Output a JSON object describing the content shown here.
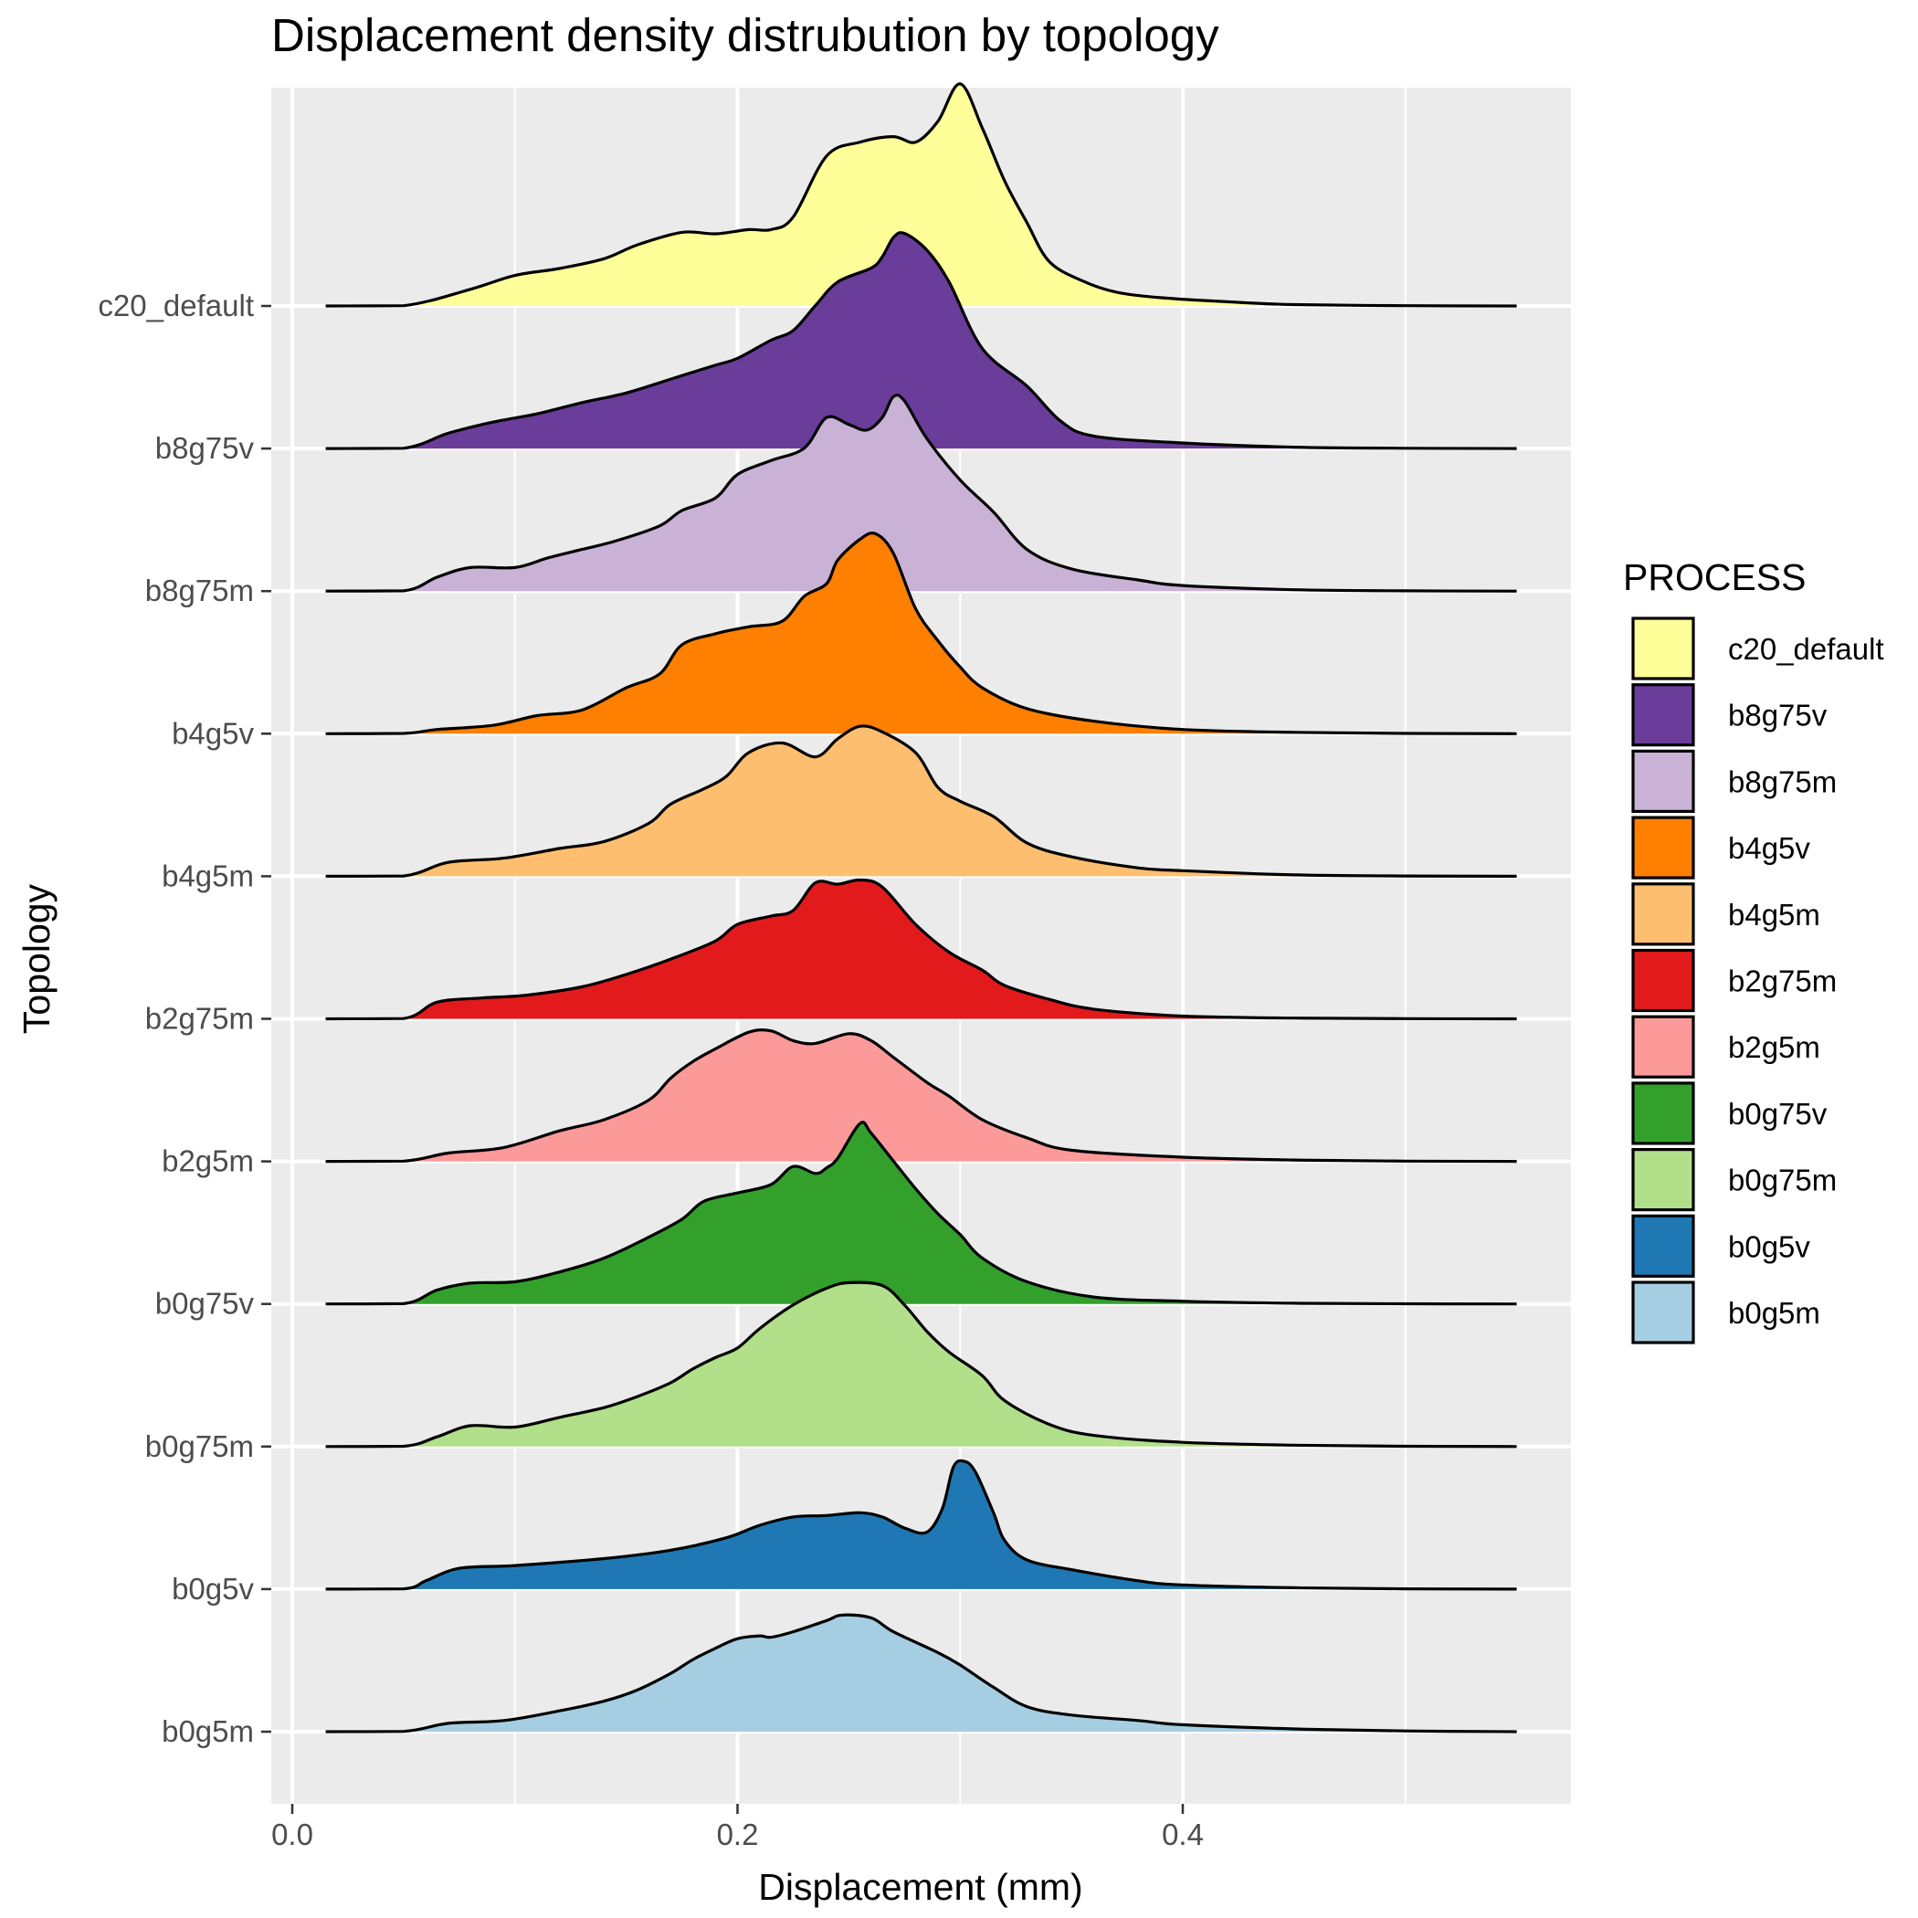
{
  "chart_data": {
    "type": "ridgeline",
    "title": "Displacement density distrubution by topology",
    "xlabel": "Displacement (mm)",
    "ylabel": "Topology",
    "xlim": [
      -0.02,
      0.575
    ],
    "x_ticks": [
      0.0,
      0.2,
      0.4
    ],
    "x_tick_labels": [
      "0.0",
      "0.2",
      "0.4"
    ],
    "grid": true,
    "legend": {
      "title": "PROCESS",
      "position": "right"
    },
    "series": [
      {
        "name": "b0g5m",
        "color": "#A6CEE3",
        "density": [
          [
            0.015,
            0
          ],
          [
            0.05,
            0.002
          ],
          [
            0.07,
            0.06
          ],
          [
            0.095,
            0.08
          ],
          [
            0.12,
            0.15
          ],
          [
            0.14,
            0.22
          ],
          [
            0.155,
            0.3
          ],
          [
            0.17,
            0.42
          ],
          [
            0.18,
            0.52
          ],
          [
            0.19,
            0.6
          ],
          [
            0.2,
            0.67
          ],
          [
            0.21,
            0.69
          ],
          [
            0.215,
            0.68
          ],
          [
            0.225,
            0.72
          ],
          [
            0.24,
            0.8
          ],
          [
            0.247,
            0.84
          ],
          [
            0.26,
            0.82
          ],
          [
            0.27,
            0.72
          ],
          [
            0.29,
            0.57
          ],
          [
            0.3,
            0.48
          ],
          [
            0.315,
            0.32
          ],
          [
            0.33,
            0.18
          ],
          [
            0.35,
            0.12
          ],
          [
            0.38,
            0.08
          ],
          [
            0.4,
            0.05
          ],
          [
            0.45,
            0.02
          ],
          [
            0.5,
            0.005
          ],
          [
            0.55,
            0
          ]
        ]
      },
      {
        "name": "b0g5v",
        "color": "#1F78B4",
        "density": [
          [
            0.015,
            0
          ],
          [
            0.05,
            0.002
          ],
          [
            0.06,
            0.06
          ],
          [
            0.075,
            0.15
          ],
          [
            0.1,
            0.17
          ],
          [
            0.14,
            0.22
          ],
          [
            0.17,
            0.28
          ],
          [
            0.195,
            0.37
          ],
          [
            0.21,
            0.46
          ],
          [
            0.225,
            0.52
          ],
          [
            0.24,
            0.53
          ],
          [
            0.255,
            0.55
          ],
          [
            0.265,
            0.52
          ],
          [
            0.275,
            0.44
          ],
          [
            0.285,
            0.41
          ],
          [
            0.292,
            0.58
          ],
          [
            0.297,
            0.88
          ],
          [
            0.302,
            0.92
          ],
          [
            0.307,
            0.84
          ],
          [
            0.315,
            0.55
          ],
          [
            0.32,
            0.35
          ],
          [
            0.33,
            0.21
          ],
          [
            0.35,
            0.14
          ],
          [
            0.38,
            0.06
          ],
          [
            0.4,
            0.03
          ],
          [
            0.45,
            0.01
          ],
          [
            0.5,
            0.002
          ],
          [
            0.55,
            0
          ]
        ]
      },
      {
        "name": "b0g75m",
        "color": "#B2DF8A",
        "density": [
          [
            0.015,
            0
          ],
          [
            0.05,
            0.002
          ],
          [
            0.065,
            0.07
          ],
          [
            0.08,
            0.15
          ],
          [
            0.1,
            0.14
          ],
          [
            0.12,
            0.21
          ],
          [
            0.14,
            0.28
          ],
          [
            0.155,
            0.36
          ],
          [
            0.17,
            0.46
          ],
          [
            0.18,
            0.56
          ],
          [
            0.19,
            0.64
          ],
          [
            0.2,
            0.71
          ],
          [
            0.21,
            0.85
          ],
          [
            0.225,
            1.02
          ],
          [
            0.24,
            1.14
          ],
          [
            0.25,
            1.18
          ],
          [
            0.265,
            1.16
          ],
          [
            0.275,
            1.02
          ],
          [
            0.285,
            0.83
          ],
          [
            0.295,
            0.68
          ],
          [
            0.31,
            0.51
          ],
          [
            0.32,
            0.33
          ],
          [
            0.34,
            0.16
          ],
          [
            0.36,
            0.08
          ],
          [
            0.4,
            0.03
          ],
          [
            0.45,
            0.01
          ],
          [
            0.5,
            0.002
          ],
          [
            0.55,
            0
          ]
        ]
      },
      {
        "name": "b0g75v",
        "color": "#33A02C",
        "density": [
          [
            0.015,
            0
          ],
          [
            0.05,
            0.002
          ],
          [
            0.065,
            0.1
          ],
          [
            0.08,
            0.15
          ],
          [
            0.1,
            0.16
          ],
          [
            0.12,
            0.23
          ],
          [
            0.14,
            0.33
          ],
          [
            0.16,
            0.48
          ],
          [
            0.175,
            0.61
          ],
          [
            0.185,
            0.74
          ],
          [
            0.2,
            0.8
          ],
          [
            0.215,
            0.86
          ],
          [
            0.225,
            0.99
          ],
          [
            0.235,
            0.94
          ],
          [
            0.24,
            0.98
          ],
          [
            0.245,
            1.05
          ],
          [
            0.255,
            1.3
          ],
          [
            0.26,
            1.23
          ],
          [
            0.27,
            1.03
          ],
          [
            0.28,
            0.83
          ],
          [
            0.29,
            0.65
          ],
          [
            0.3,
            0.5
          ],
          [
            0.31,
            0.33
          ],
          [
            0.33,
            0.16
          ],
          [
            0.36,
            0.05
          ],
          [
            0.4,
            0.02
          ],
          [
            0.45,
            0.005
          ],
          [
            0.5,
            0.001
          ],
          [
            0.55,
            0
          ]
        ]
      },
      {
        "name": "b2g5m",
        "color": "#FB9A99",
        "density": [
          [
            0.015,
            0
          ],
          [
            0.05,
            0.002
          ],
          [
            0.07,
            0.06
          ],
          [
            0.095,
            0.1
          ],
          [
            0.12,
            0.22
          ],
          [
            0.14,
            0.3
          ],
          [
            0.16,
            0.44
          ],
          [
            0.17,
            0.6
          ],
          [
            0.18,
            0.72
          ],
          [
            0.19,
            0.81
          ],
          [
            0.205,
            0.93
          ],
          [
            0.215,
            0.94
          ],
          [
            0.225,
            0.87
          ],
          [
            0.235,
            0.85
          ],
          [
            0.25,
            0.92
          ],
          [
            0.26,
            0.87
          ],
          [
            0.27,
            0.75
          ],
          [
            0.285,
            0.57
          ],
          [
            0.295,
            0.47
          ],
          [
            0.31,
            0.3
          ],
          [
            0.33,
            0.17
          ],
          [
            0.35,
            0.08
          ],
          [
            0.4,
            0.03
          ],
          [
            0.45,
            0.01
          ],
          [
            0.5,
            0.002
          ],
          [
            0.55,
            0
          ]
        ]
      },
      {
        "name": "b2g75m",
        "color": "#E31A1C",
        "density": [
          [
            0.015,
            0
          ],
          [
            0.05,
            0.002
          ],
          [
            0.065,
            0.12
          ],
          [
            0.085,
            0.15
          ],
          [
            0.105,
            0.17
          ],
          [
            0.13,
            0.23
          ],
          [
            0.15,
            0.32
          ],
          [
            0.17,
            0.43
          ],
          [
            0.19,
            0.56
          ],
          [
            0.2,
            0.68
          ],
          [
            0.215,
            0.74
          ],
          [
            0.225,
            0.78
          ],
          [
            0.235,
            0.98
          ],
          [
            0.245,
            0.97
          ],
          [
            0.255,
            1.0
          ],
          [
            0.265,
            0.95
          ],
          [
            0.28,
            0.68
          ],
          [
            0.295,
            0.48
          ],
          [
            0.31,
            0.35
          ],
          [
            0.32,
            0.24
          ],
          [
            0.34,
            0.14
          ],
          [
            0.36,
            0.07
          ],
          [
            0.4,
            0.02
          ],
          [
            0.45,
            0.005
          ],
          [
            0.5,
            0.001
          ],
          [
            0.55,
            0
          ]
        ]
      },
      {
        "name": "b4g5m",
        "color": "#FDBF6F",
        "density": [
          [
            0.015,
            0
          ],
          [
            0.05,
            0.002
          ],
          [
            0.07,
            0.1
          ],
          [
            0.095,
            0.13
          ],
          [
            0.12,
            0.2
          ],
          [
            0.14,
            0.25
          ],
          [
            0.16,
            0.38
          ],
          [
            0.17,
            0.52
          ],
          [
            0.185,
            0.63
          ],
          [
            0.195,
            0.72
          ],
          [
            0.205,
            0.89
          ],
          [
            0.22,
            0.96
          ],
          [
            0.235,
            0.86
          ],
          [
            0.245,
            0.99
          ],
          [
            0.255,
            1.08
          ],
          [
            0.265,
            1.04
          ],
          [
            0.28,
            0.89
          ],
          [
            0.29,
            0.64
          ],
          [
            0.3,
            0.54
          ],
          [
            0.315,
            0.43
          ],
          [
            0.33,
            0.24
          ],
          [
            0.35,
            0.14
          ],
          [
            0.38,
            0.06
          ],
          [
            0.4,
            0.04
          ],
          [
            0.45,
            0.01
          ],
          [
            0.5,
            0.002
          ],
          [
            0.55,
            0
          ]
        ]
      },
      {
        "name": "b4g5v",
        "color": "#FF7F00",
        "density": [
          [
            0.015,
            0
          ],
          [
            0.05,
            0.002
          ],
          [
            0.065,
            0.03
          ],
          [
            0.09,
            0.06
          ],
          [
            0.11,
            0.13
          ],
          [
            0.13,
            0.17
          ],
          [
            0.15,
            0.33
          ],
          [
            0.165,
            0.43
          ],
          [
            0.175,
            0.64
          ],
          [
            0.19,
            0.72
          ],
          [
            0.205,
            0.77
          ],
          [
            0.22,
            0.81
          ],
          [
            0.23,
            0.99
          ],
          [
            0.24,
            1.08
          ],
          [
            0.245,
            1.25
          ],
          [
            0.255,
            1.4
          ],
          [
            0.262,
            1.44
          ],
          [
            0.27,
            1.3
          ],
          [
            0.28,
            0.9
          ],
          [
            0.29,
            0.67
          ],
          [
            0.3,
            0.48
          ],
          [
            0.31,
            0.33
          ],
          [
            0.33,
            0.18
          ],
          [
            0.36,
            0.09
          ],
          [
            0.4,
            0.03
          ],
          [
            0.45,
            0.01
          ],
          [
            0.5,
            0.002
          ],
          [
            0.55,
            0
          ]
        ]
      },
      {
        "name": "b8g75m",
        "color": "#CAB2D6",
        "density": [
          [
            0.015,
            0
          ],
          [
            0.05,
            0.002
          ],
          [
            0.065,
            0.1
          ],
          [
            0.08,
            0.17
          ],
          [
            0.1,
            0.17
          ],
          [
            0.115,
            0.24
          ],
          [
            0.13,
            0.3
          ],
          [
            0.145,
            0.36
          ],
          [
            0.165,
            0.47
          ],
          [
            0.175,
            0.58
          ],
          [
            0.19,
            0.67
          ],
          [
            0.2,
            0.84
          ],
          [
            0.215,
            0.94
          ],
          [
            0.23,
            1.03
          ],
          [
            0.24,
            1.25
          ],
          [
            0.25,
            1.2
          ],
          [
            0.258,
            1.16
          ],
          [
            0.265,
            1.25
          ],
          [
            0.27,
            1.4
          ],
          [
            0.275,
            1.37
          ],
          [
            0.285,
            1.1
          ],
          [
            0.3,
            0.8
          ],
          [
            0.315,
            0.57
          ],
          [
            0.33,
            0.3
          ],
          [
            0.35,
            0.16
          ],
          [
            0.38,
            0.08
          ],
          [
            0.4,
            0.04
          ],
          [
            0.45,
            0.01
          ],
          [
            0.5,
            0.002
          ],
          [
            0.55,
            0
          ]
        ]
      },
      {
        "name": "b8g75v",
        "color": "#6A3D9A",
        "density": [
          [
            0.015,
            0
          ],
          [
            0.05,
            0.002
          ],
          [
            0.07,
            0.11
          ],
          [
            0.09,
            0.19
          ],
          [
            0.11,
            0.25
          ],
          [
            0.13,
            0.33
          ],
          [
            0.15,
            0.4
          ],
          [
            0.17,
            0.5
          ],
          [
            0.19,
            0.6
          ],
          [
            0.2,
            0.65
          ],
          [
            0.215,
            0.78
          ],
          [
            0.225,
            0.85
          ],
          [
            0.235,
            1.03
          ],
          [
            0.245,
            1.2
          ],
          [
            0.26,
            1.3
          ],
          [
            0.265,
            1.38
          ],
          [
            0.27,
            1.52
          ],
          [
            0.275,
            1.55
          ],
          [
            0.285,
            1.43
          ],
          [
            0.295,
            1.2
          ],
          [
            0.31,
            0.72
          ],
          [
            0.33,
            0.45
          ],
          [
            0.345,
            0.2
          ],
          [
            0.36,
            0.09
          ],
          [
            0.4,
            0.04
          ],
          [
            0.45,
            0.01
          ],
          [
            0.5,
            0.002
          ],
          [
            0.55,
            0
          ]
        ]
      },
      {
        "name": "c20_default",
        "color": "#FFFF99",
        "density": [
          [
            0.015,
            0
          ],
          [
            0.05,
            0.002
          ],
          [
            0.08,
            0.12
          ],
          [
            0.1,
            0.22
          ],
          [
            0.12,
            0.27
          ],
          [
            0.14,
            0.34
          ],
          [
            0.155,
            0.44
          ],
          [
            0.175,
            0.53
          ],
          [
            0.19,
            0.52
          ],
          [
            0.205,
            0.55
          ],
          [
            0.215,
            0.55
          ],
          [
            0.225,
            0.64
          ],
          [
            0.24,
            1.08
          ],
          [
            0.255,
            1.18
          ],
          [
            0.27,
            1.22
          ],
          [
            0.28,
            1.18
          ],
          [
            0.29,
            1.33
          ],
          [
            0.3,
            1.6
          ],
          [
            0.31,
            1.28
          ],
          [
            0.32,
            0.9
          ],
          [
            0.33,
            0.6
          ],
          [
            0.34,
            0.32
          ],
          [
            0.355,
            0.18
          ],
          [
            0.37,
            0.1
          ],
          [
            0.39,
            0.06
          ],
          [
            0.42,
            0.03
          ],
          [
            0.45,
            0.01
          ],
          [
            0.5,
            0.002
          ],
          [
            0.55,
            0
          ]
        ]
      }
    ]
  }
}
